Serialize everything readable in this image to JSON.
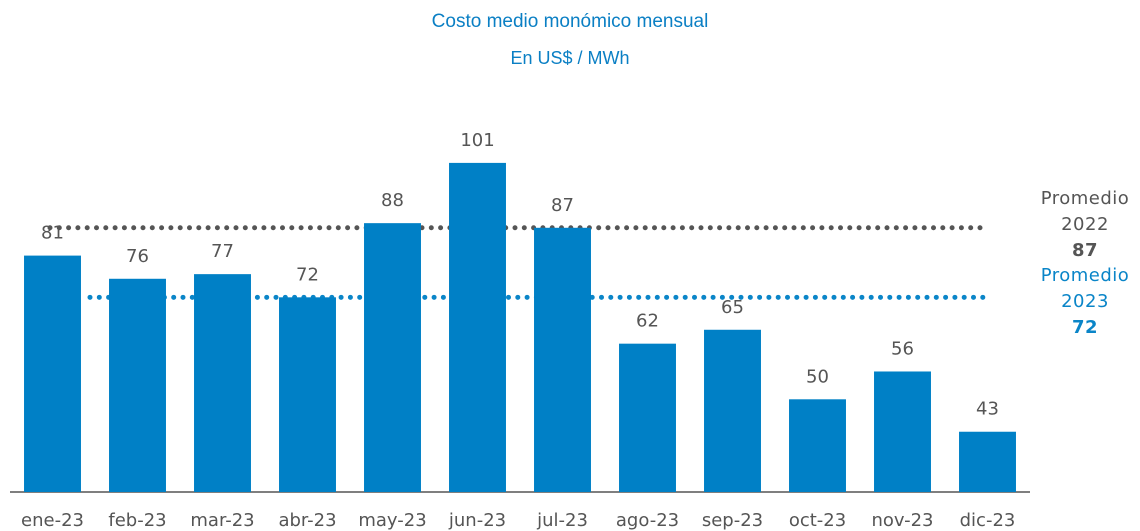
{
  "chart_data": {
    "type": "bar",
    "title": "Costo medio monómico mensual",
    "subtitle": "En US$ / MWh",
    "categories": [
      "ene-23",
      "feb-23",
      "mar-23",
      "abr-23",
      "may-23",
      "jun-23",
      "jul-23",
      "ago-23",
      "sep-23",
      "oct-23",
      "nov-23",
      "dic-23"
    ],
    "values": [
      81,
      76,
      77,
      72,
      88,
      101,
      87,
      62,
      65,
      50,
      56,
      43
    ],
    "color": "#0080c6",
    "ylim": [
      30,
      115
    ],
    "reference_lines": [
      {
        "label": "Promedio 2022",
        "value": 87,
        "color": "#555555"
      },
      {
        "label": "Promedio 2023",
        "value": 72,
        "color": "#0a85c8"
      }
    ]
  }
}
